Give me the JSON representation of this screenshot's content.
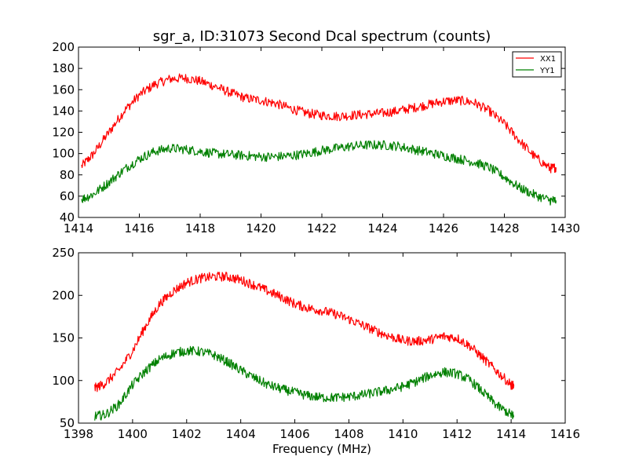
{
  "chart_data": [
    {
      "type": "line",
      "title": "sgr_a, ID:31073 Second Dcal spectrum (counts)",
      "xlabel": "",
      "ylabel": "",
      "xlim": [
        1414,
        1430
      ],
      "ylim": [
        40,
        200
      ],
      "xticks": [
        "1414",
        "1416",
        "1418",
        "1420",
        "1422",
        "1424",
        "1426",
        "1428",
        "1430"
      ],
      "yticks": [
        "40",
        "60",
        "80",
        "100",
        "120",
        "140",
        "160",
        "180",
        "200"
      ],
      "legend": {
        "placement": "top-right",
        "entries": [
          "XX1",
          "YY1"
        ]
      },
      "grid": false,
      "series": [
        {
          "name": "XX1",
          "color": "#ff0000",
          "x": [
            1414.1,
            1414.5,
            1415.0,
            1415.5,
            1416.0,
            1416.5,
            1417.0,
            1417.5,
            1418.0,
            1418.5,
            1419.0,
            1419.5,
            1420.0,
            1420.5,
            1421.0,
            1421.5,
            1422.0,
            1422.5,
            1423.0,
            1423.5,
            1424.0,
            1424.5,
            1425.0,
            1425.5,
            1426.0,
            1426.5,
            1427.0,
            1427.5,
            1428.0,
            1428.5,
            1429.0,
            1429.5,
            1429.7
          ],
          "values": [
            88,
            100,
            120,
            140,
            155,
            165,
            170,
            171,
            168,
            163,
            157,
            152,
            150,
            147,
            142,
            138,
            136,
            135,
            136,
            137,
            138,
            140,
            143,
            146,
            149,
            150,
            148,
            140,
            128,
            112,
            97,
            86,
            87
          ]
        },
        {
          "name": "YY1",
          "color": "#008000",
          "x": [
            1414.1,
            1414.5,
            1415.0,
            1415.5,
            1416.0,
            1416.5,
            1417.0,
            1417.5,
            1418.0,
            1418.5,
            1419.0,
            1419.5,
            1420.0,
            1420.5,
            1421.0,
            1421.5,
            1422.0,
            1422.5,
            1423.0,
            1423.5,
            1424.0,
            1424.5,
            1425.0,
            1425.5,
            1426.0,
            1426.5,
            1427.0,
            1427.5,
            1428.0,
            1428.5,
            1429.0,
            1429.5,
            1429.7
          ],
          "values": [
            57,
            62,
            73,
            85,
            95,
            102,
            105,
            104,
            102,
            100,
            99,
            98,
            97,
            97,
            98,
            100,
            103,
            105,
            107,
            108,
            108,
            107,
            104,
            101,
            98,
            95,
            92,
            87,
            78,
            68,
            61,
            56,
            56
          ]
        }
      ]
    },
    {
      "type": "line",
      "title": "",
      "xlabel": "Frequency (MHz)",
      "ylabel": "",
      "xlim": [
        1398,
        1416
      ],
      "ylim": [
        50,
        250
      ],
      "xticks": [
        "1398",
        "1400",
        "1402",
        "1404",
        "1406",
        "1408",
        "1410",
        "1412",
        "1414",
        "1416"
      ],
      "yticks": [
        "50",
        "100",
        "150",
        "200",
        "250"
      ],
      "grid": false,
      "series": [
        {
          "name": "XX1",
          "color": "#ff0000",
          "x": [
            1398.6,
            1399.0,
            1399.5,
            1400.0,
            1400.5,
            1401.0,
            1401.5,
            1402.0,
            1402.5,
            1403.0,
            1403.5,
            1404.0,
            1404.5,
            1405.0,
            1405.5,
            1406.0,
            1406.5,
            1407.0,
            1407.5,
            1408.0,
            1408.5,
            1409.0,
            1409.5,
            1410.0,
            1410.5,
            1411.0,
            1411.5,
            1412.0,
            1412.5,
            1413.0,
            1413.5,
            1414.0,
            1414.1
          ],
          "values": [
            91,
            97,
            112,
            135,
            165,
            190,
            205,
            215,
            220,
            222,
            222,
            218,
            212,
            205,
            198,
            190,
            185,
            182,
            178,
            172,
            165,
            158,
            152,
            147,
            146,
            148,
            152,
            150,
            140,
            125,
            110,
            95,
            93
          ]
        },
        {
          "name": "YY1",
          "color": "#008000",
          "x": [
            1398.6,
            1399.0,
            1399.5,
            1400.0,
            1400.5,
            1401.0,
            1401.5,
            1402.0,
            1402.5,
            1403.0,
            1403.5,
            1404.0,
            1404.5,
            1405.0,
            1405.5,
            1406.0,
            1406.5,
            1407.0,
            1407.5,
            1408.0,
            1408.5,
            1409.0,
            1409.5,
            1410.0,
            1410.5,
            1411.0,
            1411.5,
            1412.0,
            1412.5,
            1413.0,
            1413.5,
            1414.0,
            1414.1
          ],
          "values": [
            58,
            60,
            72,
            95,
            112,
            125,
            132,
            135,
            134,
            130,
            122,
            112,
            103,
            95,
            90,
            86,
            82,
            80,
            80,
            81,
            83,
            86,
            89,
            93,
            99,
            106,
            110,
            108,
            100,
            85,
            70,
            60,
            58
          ]
        }
      ]
    }
  ]
}
